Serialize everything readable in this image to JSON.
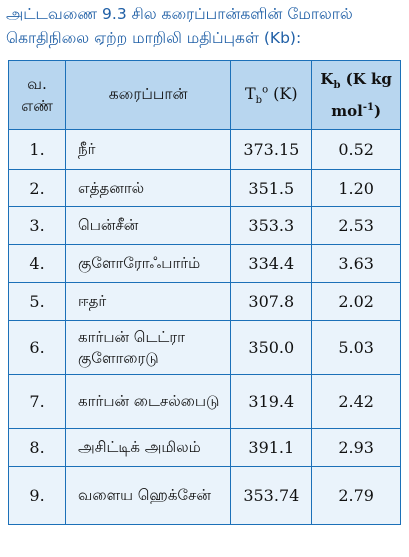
{
  "caption": {
    "line1": "அட்டவணை 9.3 சில கரைப்பான்களின் மோலால்",
    "line2": "கொதிநிலை ஏற்ற மாறிலி மதிப்புகள் (Kb):"
  },
  "headers": {
    "sl_line1": "வ.",
    "sl_line2": "எண்",
    "solvent": "கரைப்பான்",
    "tb_main": "T",
    "tb_sub": "b",
    "tb_sup": "o",
    "tb_unit": " (K)",
    "kb_main": "K",
    "kb_sub": "b",
    "kb_unit_line1": " (K kg",
    "kb_unit_line2": "mol",
    "kb_unit_sup": "-1",
    "kb_close": ")"
  },
  "rows": [
    {
      "sl": "1.",
      "name": "நீர்",
      "tb": "373.15",
      "kb": "0.52"
    },
    {
      "sl": "2.",
      "name": "எத்தனால்",
      "tb": "351.5",
      "kb": "1.20"
    },
    {
      "sl": "3.",
      "name": "பென்சீன்",
      "tb": "353.3",
      "kb": "2.53"
    },
    {
      "sl": "4.",
      "name": "குளோரோஃபார்ம்",
      "tb": "334.4",
      "kb": "3.63"
    },
    {
      "sl": "5.",
      "name": "ஈதர்",
      "tb": "307.8",
      "kb": "2.02"
    },
    {
      "sl": "6.",
      "name": "கார்பன் டெட்ரா குளோரைடு",
      "tb": "350.0",
      "kb": "5.03"
    },
    {
      "sl": "7.",
      "name": "கார்பன் டைசல்பைடு",
      "tb": "319.4",
      "kb": "2.42"
    },
    {
      "sl": "8.",
      "name": "அசிட்டிக் அமிலம்",
      "tb": "391.1",
      "kb": "2.93"
    },
    {
      "sl": "9.",
      "name": "வளைய ஹெக்சேன்",
      "tb": "353.74",
      "kb": "2.79"
    }
  ]
}
